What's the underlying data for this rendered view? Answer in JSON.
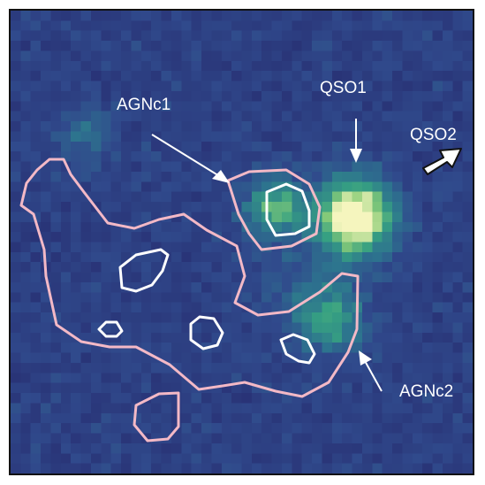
{
  "image": {
    "colormap": "viridis-like",
    "background_color": "#2f3f84",
    "sources": [
      {
        "name": "QSO1",
        "brightness": "peak"
      },
      {
        "name": "AGNc1",
        "brightness": "moderate"
      },
      {
        "name": "AGNc2",
        "brightness": "moderate"
      }
    ]
  },
  "labels": {
    "agnc1": "AGNc1",
    "qso1": "QSO1",
    "qso2": "QSO2",
    "agnc2": "AGNc2"
  },
  "contours": {
    "outer_color": "#f3b9c6",
    "inner_color": "#ffffff"
  },
  "icons": {
    "qso2_direction": "thick-arrow-icon",
    "pointer": "arrow-icon"
  }
}
